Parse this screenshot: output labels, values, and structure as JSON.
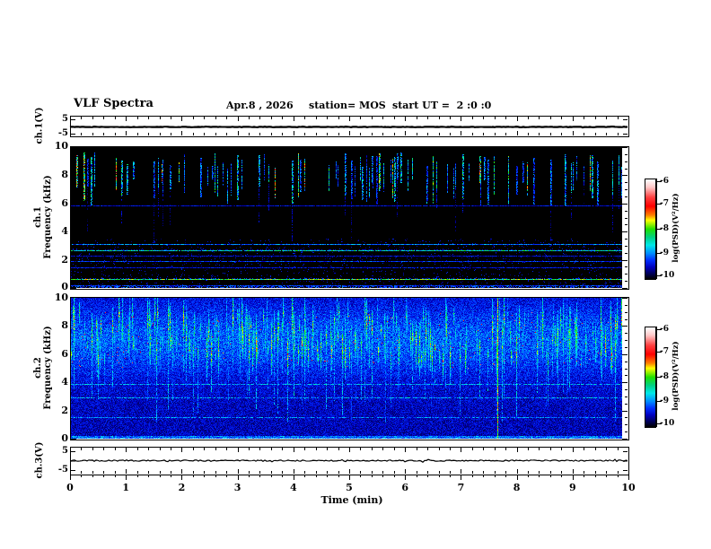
{
  "header": {
    "title": "VLF Spectra",
    "date": "Apr.8 , 2026",
    "station": "station= MOS",
    "start_ut": "start UT =  2 :0 :0"
  },
  "x_axis": {
    "label": "Time (min)",
    "tick_labels": [
      "0",
      "1",
      "2",
      "3",
      "4",
      "5",
      "6",
      "7",
      "8",
      "9",
      "10"
    ],
    "range": [
      0,
      10
    ]
  },
  "panels": {
    "ch1_wave": {
      "ylabel": "ch.1(V)",
      "tick_labels": [
        "5",
        "-5"
      ],
      "range": [
        -5,
        5
      ]
    },
    "ch1_spec": {
      "ylabel_line1": "ch.1",
      "ylabel_line2": "Frequency (kHz)",
      "tick_labels": [
        "10",
        "8",
        "6",
        "4",
        "2",
        "0"
      ],
      "range": [
        0,
        10
      ]
    },
    "ch2_spec": {
      "ylabel_line1": "ch.2",
      "ylabel_line2": "Frequency (kHz)",
      "tick_labels": [
        "10",
        "8",
        "6",
        "4",
        "2",
        "0"
      ],
      "range": [
        0,
        10
      ]
    },
    "ch3_wave": {
      "ylabel": "ch.3(V)",
      "tick_labels": [
        "5",
        "-5"
      ],
      "range": [
        -5,
        5
      ]
    }
  },
  "colorbars": [
    {
      "label": "log(PSD)(V²/Hz)",
      "tick_labels": [
        "-6",
        "-7",
        "-8",
        "-9",
        "-10"
      ],
      "range": [
        -10,
        -6
      ]
    },
    {
      "label": "log(PSD)(V²/Hz)",
      "tick_labels": [
        "-6",
        "-7",
        "-8",
        "-9",
        "-10"
      ],
      "range": [
        -10,
        -6
      ]
    }
  ],
  "colormap": {
    "scale_label": "log(PSD)(V²/Hz)",
    "range": [
      -10,
      -6
    ],
    "stops": [
      [
        0.0,
        "#000000"
      ],
      [
        0.05,
        "#000050"
      ],
      [
        0.12,
        "#0000c0"
      ],
      [
        0.19,
        "#0030ff"
      ],
      [
        0.26,
        "#0090ff"
      ],
      [
        0.34,
        "#00e8e8"
      ],
      [
        0.42,
        "#00d080"
      ],
      [
        0.5,
        "#20e000"
      ],
      [
        0.59,
        "#ffff00"
      ],
      [
        0.64,
        "#ff8000"
      ],
      [
        0.73,
        "#ff0000"
      ],
      [
        0.82,
        "#ff4040"
      ],
      [
        0.92,
        "#ffc8c8"
      ],
      [
        1.0,
        "#ffffff"
      ]
    ]
  },
  "chart_data": [
    {
      "type": "line",
      "name": "ch1_voltage_strip",
      "ylabel": "ch.1(V)",
      "xlabel": "Time (min)",
      "xlim": [
        0,
        10
      ],
      "ylim": [
        -5,
        5
      ],
      "description": "Essentially flat thick waveform at 0 V for the full 10 minutes",
      "baseline_value": 0,
      "noise_amplitude_v": 0.1
    },
    {
      "type": "heatmap",
      "name": "ch1_spectrogram",
      "xlabel": "Time (min)",
      "ylabel": "Frequency (kHz)",
      "xlim": [
        0,
        10
      ],
      "ylim": [
        0,
        10
      ],
      "zlabel": "log(PSD)(V²/Hz)",
      "zlim": [
        -10,
        -6
      ],
      "description": "Black (~-10) background; dense impulsive vertical streaks between ~6 and 9.5 kHz in blue/cyan/green (-9 to -8); sparse faint full-height streaks; persistent horizontal lines in the 0-6 kHz range; bright cyan line near 0.65 kHz",
      "horizontal_lines_khz": [
        5.85,
        3.15,
        2.65,
        2.3,
        1.9,
        1.45,
        0.65,
        0.2
      ],
      "render": {
        "seed": 42,
        "streak_band_khz": [
          5.9,
          9.6
        ],
        "tall_faint_streaks": 14,
        "hlines": [
          {
            "f": 5.85,
            "i": 0.15
          },
          {
            "f": 3.15,
            "i": 0.26
          },
          {
            "f": 2.65,
            "i": 0.38
          },
          {
            "f": 2.3,
            "i": 0.15
          },
          {
            "f": 1.9,
            "i": 0.2
          },
          {
            "f": 1.45,
            "i": 0.16
          },
          {
            "f": 0.65,
            "i": 0.5
          },
          {
            "f": 0.2,
            "i": 0.2
          }
        ]
      }
    },
    {
      "type": "heatmap",
      "name": "ch2_spectrogram",
      "xlabel": "Time (min)",
      "ylabel": "Frequency (kHz)",
      "xlim": [
        0,
        10
      ],
      "ylim": [
        0,
        10
      ],
      "zlabel": "log(PSD)(V²/Hz)",
      "zlim": [
        -10,
        -6
      ],
      "description": "Continuous dark-blue noise (~-9.5) everywhere; dense green/cyan bursts between ~4 and 9.5 kHz (-8.5 to -7.5) with occasional red/orange hot pixels; narrow cyan spikes reaching down to 1-3 kHz; faint horizontal lines near 3.9, 2.9 and 1.5 kHz; bright full-height line near 7.7 min",
      "horizontal_lines_khz": [
        3.9,
        2.9,
        1.5
      ],
      "render": {
        "seed": 77,
        "bursts": 250,
        "burst_center_khz": [
          5.6,
          9.0
        ],
        "bright_line_min": 7.73,
        "hlines": [
          {
            "f": 3.9,
            "i": 0.27
          },
          {
            "f": 2.9,
            "i": 0.25
          },
          {
            "f": 1.5,
            "i": 0.22
          }
        ]
      }
    },
    {
      "type": "line",
      "name": "ch3_voltage_strip",
      "ylabel": "ch.3(V)",
      "xlabel": "Time (min)",
      "xlim": [
        0,
        10
      ],
      "ylim": [
        -5,
        5
      ],
      "description": "Near-flat noisy waveform at 0 V with small bumps",
      "baseline_value": 0,
      "noise_amplitude_v": 0.4
    }
  ]
}
